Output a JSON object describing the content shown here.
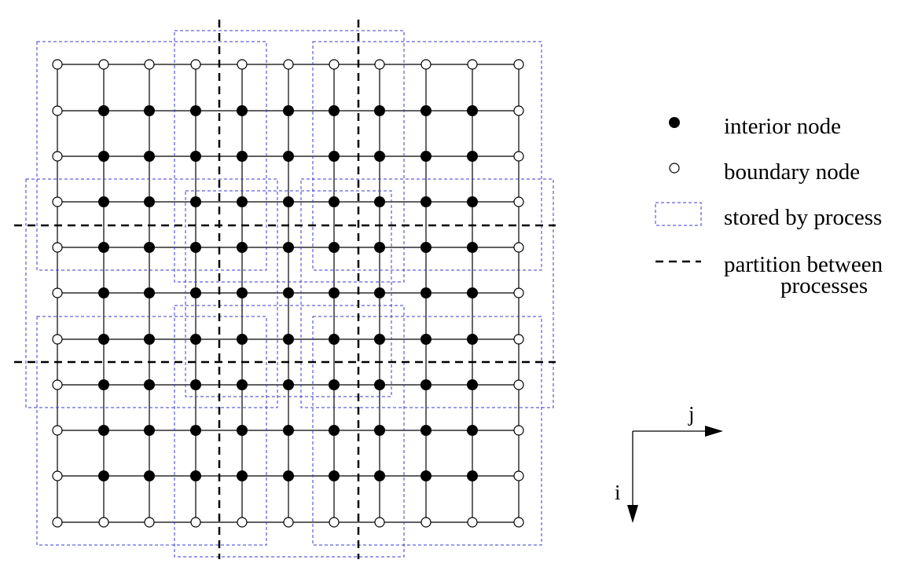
{
  "grid": {
    "rows": 11,
    "cols": 11
  },
  "legend": {
    "interior_label": "interior node",
    "boundary_label": "boundary node",
    "stored_label": "stored by process",
    "partition_label_line1": "partition between",
    "partition_label_line2": "processes"
  },
  "axes": {
    "j_label": "j",
    "i_label": "i"
  },
  "colors": {
    "grid_line": "#000000",
    "stored_box": "#3a3ad6",
    "partition_line": "#000000"
  }
}
